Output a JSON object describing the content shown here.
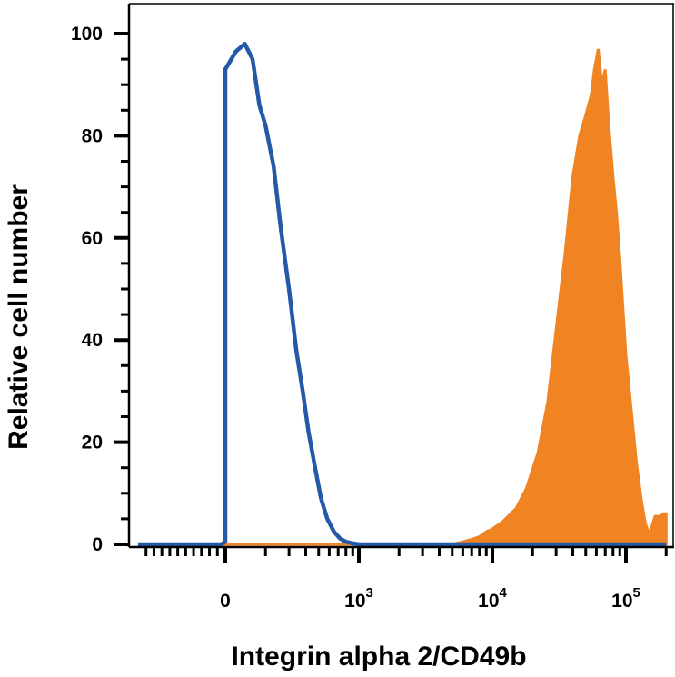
{
  "chart_data": {
    "type": "area",
    "title": "",
    "xlabel": "Integrin alpha 2/CD49b",
    "ylabel": "Relative cell number",
    "x_scale": "biexponential",
    "xlim": [
      -110,
      200000
    ],
    "ylim": [
      0,
      100
    ],
    "grid": false,
    "y_ticks": [
      0,
      20,
      40,
      60,
      80,
      100
    ],
    "x_tick_labels": [
      {
        "value": 0,
        "base": "0",
        "exp": ""
      },
      {
        "value": 1000,
        "base": "10",
        "exp": "3"
      },
      {
        "value": 10000,
        "base": "10",
        "exp": "4"
      },
      {
        "value": 100000,
        "base": "10",
        "exp": "5"
      }
    ],
    "series": [
      {
        "style": "outline",
        "color": "#2559a8",
        "x": [
          -110,
          -5,
          8,
          25,
          40,
          55,
          70,
          85,
          100,
          120,
          140,
          160,
          180,
          200,
          230,
          260,
          300,
          340,
          380,
          420,
          470,
          520,
          580,
          650,
          720,
          800,
          900,
          1000,
          1050,
          1200,
          5000,
          200000
        ],
        "y": [
          0,
          0,
          0.5,
          3,
          10,
          30,
          55,
          80,
          93,
          96.5,
          98,
          95,
          86,
          82,
          74,
          62,
          50,
          38,
          30,
          22,
          15,
          9,
          5,
          2.5,
          1.2,
          0.5,
          0.2,
          0,
          0,
          0,
          0,
          0
        ]
      },
      {
        "style": "filled",
        "color": "#f08423",
        "x": [
          -110,
          5000,
          6000,
          7000,
          8000,
          9000,
          10000,
          12000,
          15000,
          18000,
          22000,
          26000,
          30000,
          35000,
          40000,
          45000,
          50000,
          55000,
          58000,
          62000,
          66000,
          70000,
          75000,
          80000,
          85000,
          90000,
          100000,
          110000,
          120000,
          130000,
          140000,
          150000,
          165000,
          180000,
          190000,
          200000
        ],
        "y": [
          0,
          0,
          0.5,
          1,
          1.5,
          2.5,
          3,
          4.5,
          7,
          11,
          18,
          28,
          42,
          57,
          72,
          80,
          84,
          88,
          93,
          97,
          90,
          93,
          81,
          72,
          65,
          56,
          37,
          26,
          16,
          9,
          4,
          2,
          5.5,
          5.5,
          6,
          6
        ]
      }
    ]
  }
}
